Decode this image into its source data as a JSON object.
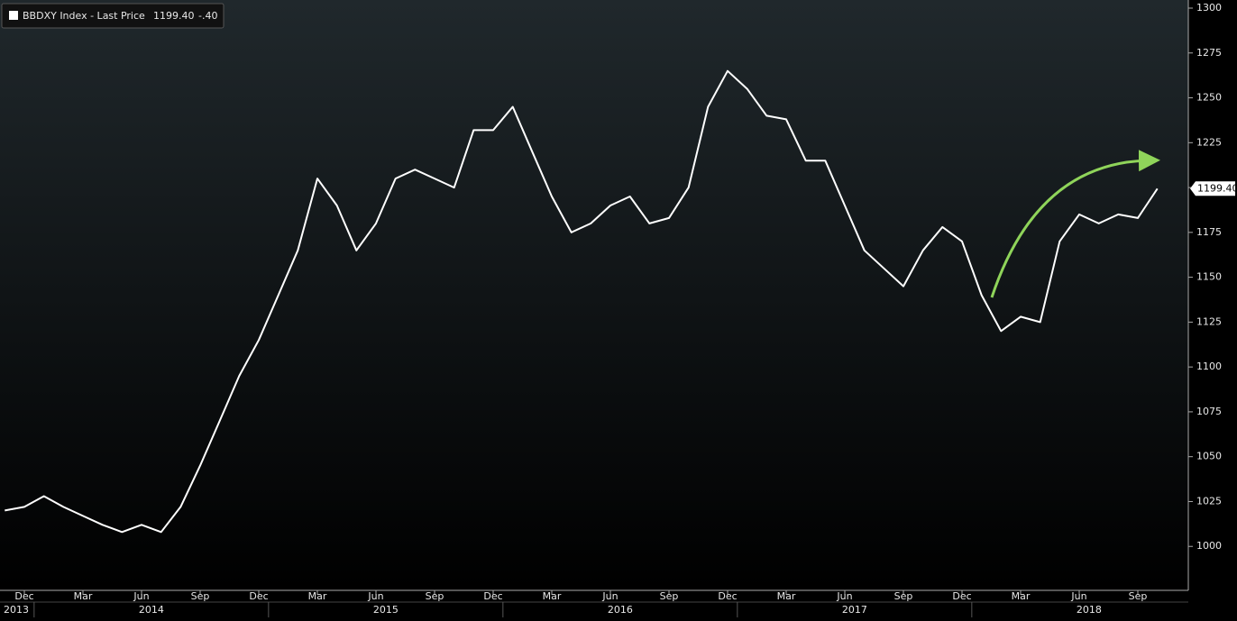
{
  "chart_data": {
    "type": "line",
    "series": [
      {
        "name": "BBDXY Index - Last Price",
        "color": "#ffffff",
        "last_price": "1199.40",
        "change": "-.40",
        "values": [
          1020,
          1022,
          1028,
          1022,
          1017,
          1012,
          1008,
          1012,
          1008,
          1022,
          1045,
          1070,
          1095,
          1115,
          1140,
          1165,
          1205,
          1190,
          1165,
          1180,
          1205,
          1210,
          1205,
          1200,
          1232,
          1232,
          1245,
          1220,
          1195,
          1175,
          1180,
          1190,
          1195,
          1180,
          1183,
          1200,
          1245,
          1265,
          1255,
          1240,
          1238,
          1215,
          1215,
          1190,
          1165,
          1155,
          1145,
          1165,
          1178,
          1170,
          1140,
          1120,
          1128,
          1125,
          1170,
          1185,
          1180,
          1185,
          1183,
          1199.4
        ]
      }
    ],
    "x": [
      "2013-11",
      "2013-12",
      "2014-01",
      "2014-02",
      "2014-03",
      "2014-04",
      "2014-05",
      "2014-06",
      "2014-07",
      "2014-08",
      "2014-09",
      "2014-10",
      "2014-11",
      "2014-12",
      "2015-01",
      "2015-02",
      "2015-03",
      "2015-04",
      "2015-05",
      "2015-06",
      "2015-07",
      "2015-08",
      "2015-09",
      "2015-10",
      "2015-11",
      "2015-12",
      "2016-01",
      "2016-02",
      "2016-03",
      "2016-04",
      "2016-05",
      "2016-06",
      "2016-07",
      "2016-08",
      "2016-09",
      "2016-10",
      "2016-11",
      "2016-12",
      "2017-01",
      "2017-02",
      "2017-03",
      "2017-04",
      "2017-05",
      "2017-06",
      "2017-07",
      "2017-08",
      "2017-09",
      "2017-10",
      "2017-11",
      "2017-12",
      "2018-01",
      "2018-02",
      "2018-03",
      "2018-04",
      "2018-05",
      "2018-06",
      "2018-07",
      "2018-08",
      "2018-09",
      "2018-10"
    ],
    "ylim": [
      975,
      1300
    ],
    "yticks": [
      1000,
      1025,
      1050,
      1075,
      1100,
      1125,
      1150,
      1175,
      1200,
      1225,
      1250,
      1275,
      1300
    ],
    "xticks": [
      {
        "value": "2013-12",
        "label": "Dec"
      },
      {
        "value": "2014-03",
        "label": "Mar"
      },
      {
        "value": "2014-06",
        "label": "Jun"
      },
      {
        "value": "2014-09",
        "label": "Sep"
      },
      {
        "value": "2014-12",
        "label": "Dec"
      },
      {
        "value": "2015-03",
        "label": "Mar"
      },
      {
        "value": "2015-06",
        "label": "Jun"
      },
      {
        "value": "2015-09",
        "label": "Sep"
      },
      {
        "value": "2015-12",
        "label": "Dec"
      },
      {
        "value": "2016-03",
        "label": "Mar"
      },
      {
        "value": "2016-06",
        "label": "Jun"
      },
      {
        "value": "2016-09",
        "label": "Sep"
      },
      {
        "value": "2016-12",
        "label": "Dec"
      },
      {
        "value": "2017-03",
        "label": "Mar"
      },
      {
        "value": "2017-06",
        "label": "Jun"
      },
      {
        "value": "2017-09",
        "label": "Sep"
      },
      {
        "value": "2017-12",
        "label": "Dec"
      },
      {
        "value": "2018-03",
        "label": "Mar"
      },
      {
        "value": "2018-06",
        "label": "Jun"
      },
      {
        "value": "2018-09",
        "label": "Sep"
      }
    ],
    "xticks_years": [
      "2013",
      "2014",
      "2015",
      "2016",
      "2017",
      "2018"
    ]
  }
}
